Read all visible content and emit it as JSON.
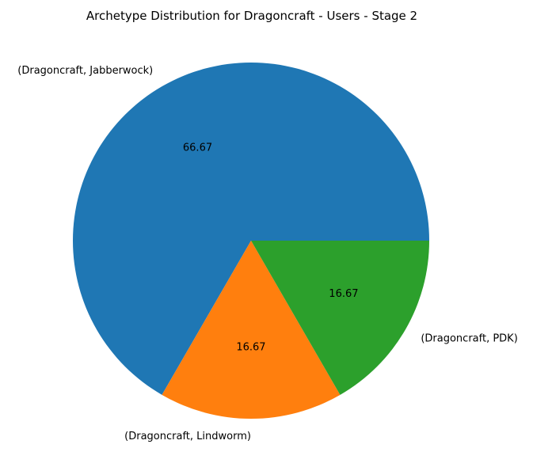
{
  "chart_data": {
    "type": "pie",
    "title": "Archetype Distribution for Dragoncraft - Users - Stage 2",
    "categories": [
      "(Dragoncraft, Jabberwock)",
      "(Dragoncraft, Lindworm)",
      "(Dragoncraft, PDK)"
    ],
    "values": [
      66.67,
      16.67,
      16.67
    ],
    "value_labels": [
      "66.67",
      "16.67",
      "16.67"
    ],
    "colors": [
      "#1f77b4",
      "#ff7f0e",
      "#2ca02c"
    ],
    "start_angle_deg": 0,
    "direction": "counterclockwise",
    "legend": "none"
  }
}
